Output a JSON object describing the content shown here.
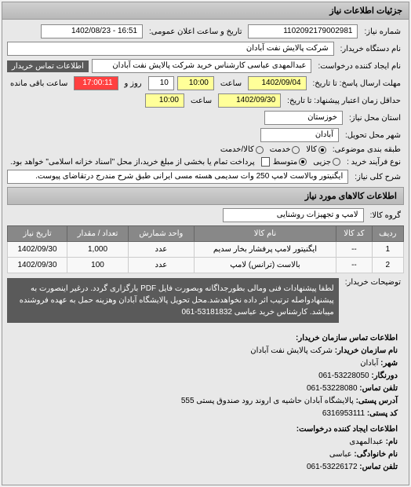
{
  "header": {
    "title": "جزئیات اطلاعات نیاز"
  },
  "form": {
    "number_label": "شماره نیاز:",
    "number_value": "1102092179002981",
    "date_label": "تاریخ و ساعت اعلان عمومی:",
    "date_value": "16:51 - 1402/08/23",
    "device_label": "نام دستگاه خریدار:",
    "device_value": "شرکت پالایش نفت آبادان",
    "creator_label": "نام ایجاد کننده درخواست:",
    "creator_value": "عبدالمهدی عباسی کارشناس خرید شرکت پالایش نفت آبادان",
    "contact_button": "اطلاعات تماس خریدار",
    "deadline_label": "مهلت ارسال پاسخ: تا تاریخ:",
    "deadline_date": "1402/09/04",
    "deadline_time_label": "ساعت",
    "deadline_time": "10:00",
    "remaining_label": "روز و",
    "remaining_days": "10",
    "remaining_time": "17:00:11",
    "remaining_suffix": "ساعت باقی مانده",
    "validity_label": "حداقل زمان اعتبار پیشنهاد: تا تاریخ:",
    "validity_date": "1402/09/30",
    "validity_time": "10:00",
    "province_label": "استان محل نیاز:",
    "province_value": "خوزستان",
    "city_label": "شهر محل تحویل:",
    "city_value": "آبادان",
    "packaging_label": "طبقه بندی موضوعی:",
    "packaging_options": {
      "goods": "کالا",
      "service": "خدمت",
      "both": "کالا/خدمت"
    },
    "process_label": "نوع فرآیند خرید :",
    "process_options": {
      "low": "جزیی",
      "medium": "متوسط"
    },
    "process_note": "پرداخت تمام یا بخشی از مبلغ خرید،از محل \"اسناد خزانه اسلامی\" خواهد بود.",
    "keywords_label": "شرح کلی نیاز:",
    "keywords_value": "ایگنیتور وبالاست لامپ 250 وات سدیمی هسته مسی ایرانی طبق شرح مندرج درتقاضای پیوست."
  },
  "goods": {
    "title": "اطلاعات کالاهای مورد نیاز",
    "group_label": "گروه کالا:",
    "group_value": "لامپ و تجهیزات روشنایی",
    "columns": {
      "row": "ردیف",
      "code": "کد کالا",
      "name": "نام کالا",
      "unit": "واحد شمارش",
      "qty": "تعداد / مقدار",
      "date": "تاریخ نیاز"
    },
    "rows": [
      {
        "row": "1",
        "code": "--",
        "name": "ایگنیتور لامپ پرفشار بخار سدیم",
        "unit": "عدد",
        "qty": "1,000",
        "date": "1402/09/30"
      },
      {
        "row": "2",
        "code": "--",
        "name": "بالاست (ترانس) لامپ",
        "unit": "عدد",
        "qty": "100",
        "date": "1402/09/30"
      }
    ]
  },
  "notes": {
    "label": "توضیحات خریدار:",
    "text": "لطفا پیشنهادات فنی ومالی بطورجداگانه وبصورت فایل PDF بارگزاری گردد. درغیر اینصورت به پیشنهادواصله ترتیب اثر داده نخواهدشد.محل تحویل پالایشگاه آبادان وهزینه حمل به عهده فروشنده میباشد. کارشناس خرید عباسی 53181832-061"
  },
  "contact": {
    "title": "اطلاعات تماس سازمان خریدار:",
    "org_label": "نام سازمان خریدار:",
    "org_value": "شرکت پالایش نفت آبادان",
    "city_label": "شهر:",
    "city_value": "آبادان",
    "region_label": "دورنگار:",
    "region_value": "53228050-061",
    "phone_label": "تلفن تماس:",
    "phone_value": "53228080-061",
    "address_label": "آدرس پستی:",
    "address_value": "پالایشگاه آبادان حاشیه ی اروند رود صندوق پستی 555",
    "postal_label": "کد پستی:",
    "postal_value": "6316953111",
    "creator_title": "اطلاعات ایجاد کننده درخواست:",
    "name_label": "نام:",
    "name_value": "عبدالمهدی",
    "surname_label": "نام خانوادگی:",
    "surname_value": "عباسی",
    "creator_phone_label": "تلفن تماس:",
    "creator_phone_value": "53226172-061"
  }
}
